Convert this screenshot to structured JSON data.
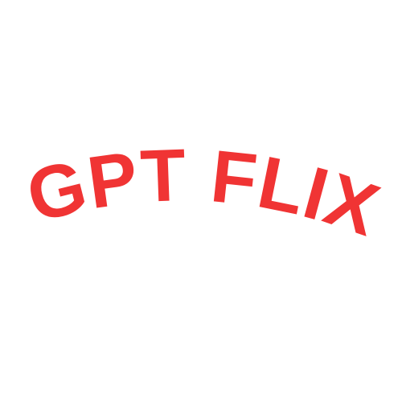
{
  "logo": {
    "text": "GPT FLIX",
    "color": "#f03434"
  }
}
